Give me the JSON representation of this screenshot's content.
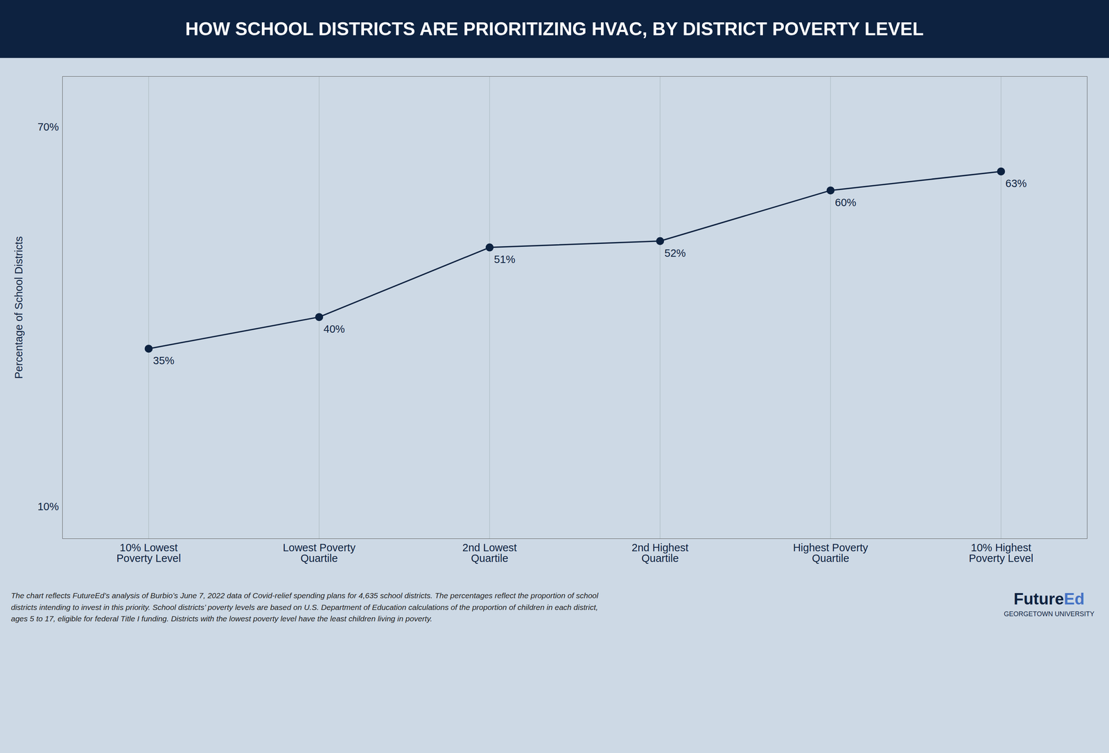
{
  "chart_data": {
    "type": "line",
    "title": "HOW SCHOOL DISTRICTS ARE PRIORITIZING HVAC, BY DISTRICT POVERTY LEVEL",
    "ylabel": "Percentage of School Districts",
    "categories": [
      "10% Lowest\nPoverty Level",
      "Lowest Poverty\nQuartile",
      "2nd Lowest\nQuartile",
      "2nd Highest\nQuartile",
      "Highest Poverty\nQuartile",
      "10% Highest\nPoverty Level"
    ],
    "values": [
      35,
      40,
      51,
      52,
      60,
      63
    ],
    "value_labels": [
      "35%",
      "40%",
      "51%",
      "52%",
      "60%",
      "63%"
    ],
    "data_labels": true,
    "color": "#0d2240",
    "marker": "circle",
    "ylim": [
      5,
      78
    ],
    "yticks": [
      {
        "value": 10,
        "label": "10%"
      },
      {
        "value": 70,
        "label": "70%"
      }
    ],
    "grid": "x",
    "caption": "The chart reflects FutureEd’s analysis of Burbio’s June 7, 2022 data of Covid-relief spending plans for 4,635 school districts. The percentages reflect the proportion of school\ndistricts intending to invest in this priority. School districts’ poverty levels are based on U.S. Department of Education calculations of the proportion of children in each district,\nages 5 to 17, eligible for federal Title I funding. Districts with the lowest poverty level have the least children living in poverty.",
    "annotations": [
      {
        "text": "Future",
        "color": "#0d2240"
      },
      {
        "text": "Ed",
        "color": "#4472c4"
      },
      {
        "text": "GEORGETOWN UNIVERSITY"
      }
    ]
  }
}
